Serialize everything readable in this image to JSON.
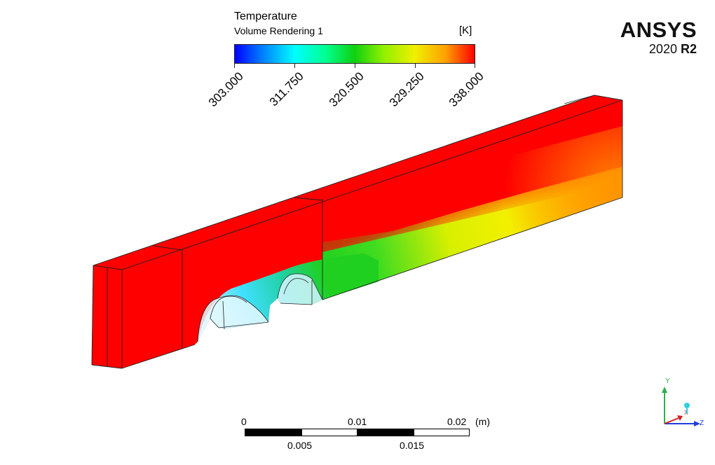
{
  "legend": {
    "title": "Temperature",
    "subtitle": "Volume Rendering 1",
    "unit": "[K]",
    "ticks": [
      "303.000",
      "311.750",
      "320.500",
      "329.250",
      "338.000"
    ]
  },
  "brand": {
    "name": "ANSYS",
    "version_year": "2020",
    "version_release": "R2"
  },
  "scale_bar": {
    "top_labels": [
      "0",
      "0.01",
      "0.02"
    ],
    "unit": "(m)",
    "bottom_labels": [
      "0.005",
      "0.015"
    ]
  },
  "triad": {
    "y_label": "Y",
    "x_label": "X",
    "z_label": "Z"
  },
  "colors": {
    "hot": "#ff0000",
    "orange": "#ff9900",
    "yellow": "#f5f500",
    "green": "#22d022",
    "cyan": "#00ffff",
    "blue": "#0000ff",
    "triad_y": "#2db04a",
    "triad_x": "#d42020",
    "triad_z": "#2040d8",
    "triad_ball": "#30d0e0"
  }
}
